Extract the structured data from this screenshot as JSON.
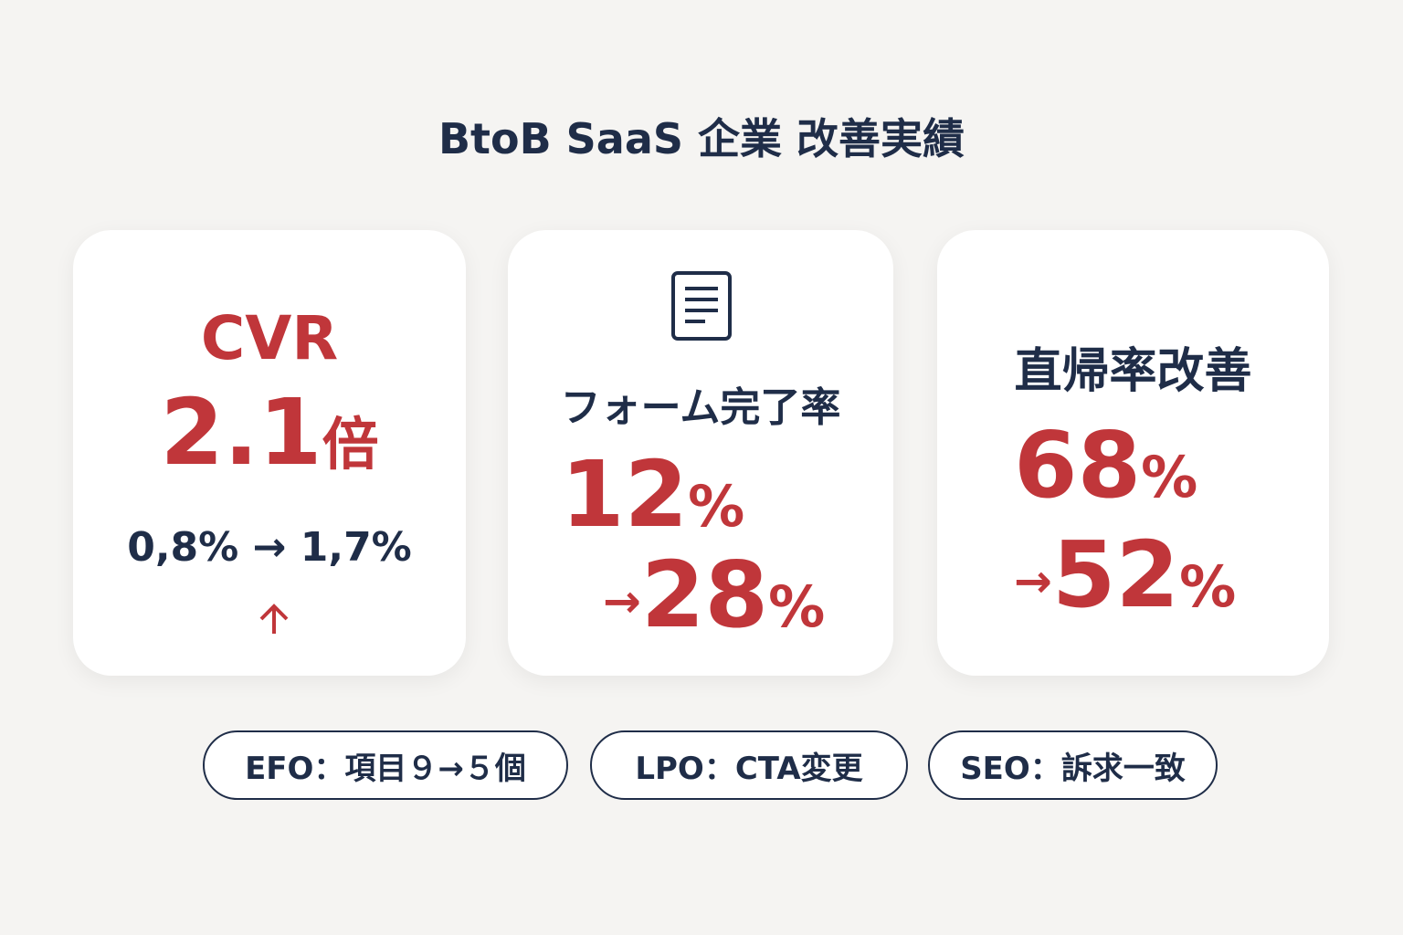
{
  "header": {
    "title": "BtoB SaaS 企業 改善実績"
  },
  "cards": [
    {
      "label": "CVR",
      "result": {
        "number": "2.1",
        "unit": "倍"
      },
      "detail": "0,8% → 1,7%"
    },
    {
      "label": "フォーム完了率",
      "before": {
        "number": "12",
        "unit": "%"
      },
      "after": {
        "prefix": "→",
        "number": "28",
        "unit": "%"
      }
    },
    {
      "label": "直帰率改善",
      "before": {
        "number": "68",
        "unit": "%"
      },
      "after": {
        "prefix": "→",
        "number": "52",
        "unit": "%"
      }
    }
  ],
  "tags": [
    "EFO：項目９→５個",
    "LPO：CTA変更",
    "SEO：訴求一致"
  ]
}
